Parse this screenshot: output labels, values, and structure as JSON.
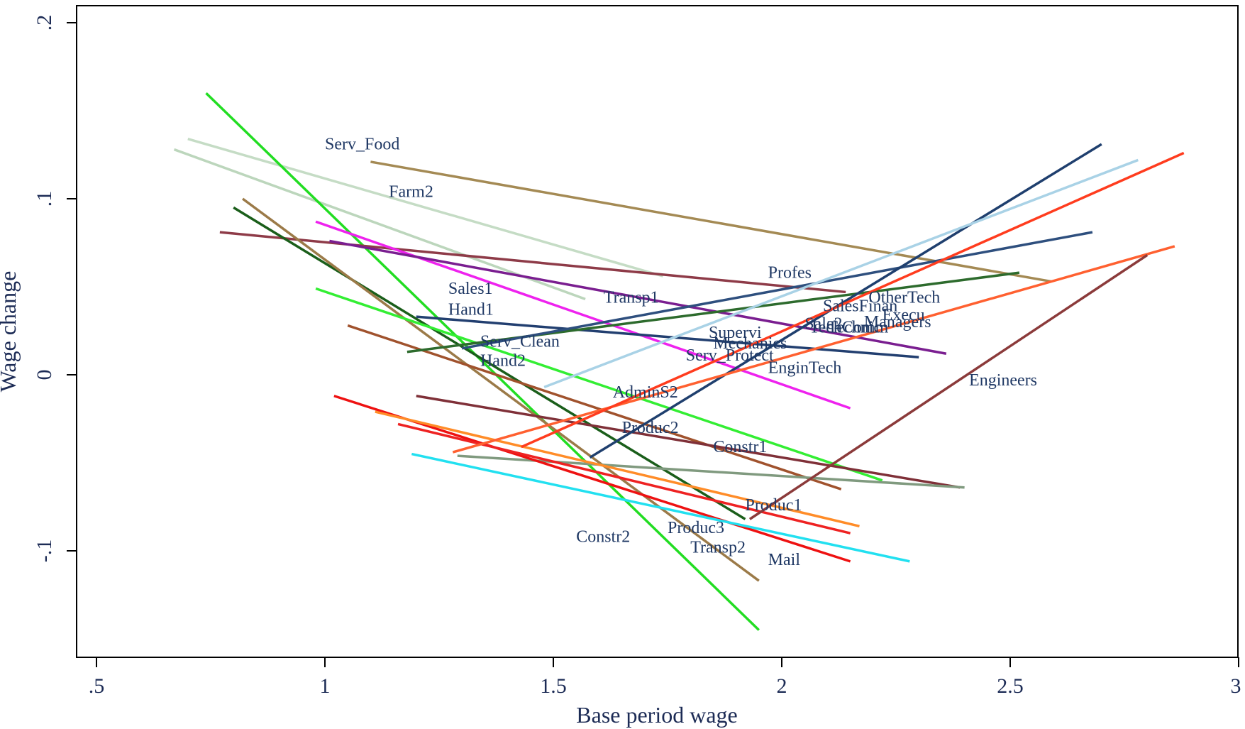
{
  "chart_data": {
    "type": "line",
    "title": "",
    "xlabel": "Base period wage",
    "ylabel": "Wage change",
    "xlim": [
      0.45,
      3.0
    ],
    "ylim": [
      -0.16,
      0.21
    ],
    "x_ticks": [
      {
        "value": 0.5,
        "label": ".5"
      },
      {
        "value": 1,
        "label": "1"
      },
      {
        "value": 1.5,
        "label": "1.5"
      },
      {
        "value": 2,
        "label": "2"
      },
      {
        "value": 2.5,
        "label": "2.5"
      },
      {
        "value": 3,
        "label": "3"
      }
    ],
    "y_ticks": [
      {
        "value": -0.1,
        "label": "-.1"
      },
      {
        "value": 0,
        "label": "0"
      },
      {
        "value": 0.1,
        "label": ".1"
      },
      {
        "value": 0.2,
        "label": ".2"
      }
    ],
    "grid": false,
    "legend": "none",
    "series": [
      {
        "x": [
          1.1,
          2.59
        ],
        "y": [
          0.121,
          0.053
        ],
        "color": "#a48a54"
      },
      {
        "x": [
          0.7,
          1.74
        ],
        "y": [
          0.134,
          0.056
        ],
        "color": "#c5dcc5"
      },
      {
        "x": [
          0.67,
          1.57
        ],
        "y": [
          0.128,
          0.043
        ],
        "color": "#bcd6bc"
      },
      {
        "x": [
          0.74,
          1.95
        ],
        "y": [
          0.16,
          -0.145
        ],
        "color": "#22dd22"
      },
      {
        "x": [
          0.77,
          2.14
        ],
        "y": [
          0.081,
          0.047
        ],
        "color": "#8e3b48"
      },
      {
        "x": [
          0.98,
          2.15
        ],
        "y": [
          0.087,
          -0.019
        ],
        "color": "#ee22ee"
      },
      {
        "x": [
          1.01,
          2.36
        ],
        "y": [
          0.076,
          0.012
        ],
        "color": "#7a1e90"
      },
      {
        "x": [
          0.8,
          1.92
        ],
        "y": [
          0.095,
          -0.082
        ],
        "color": "#1a5e1a"
      },
      {
        "x": [
          0.82,
          1.95
        ],
        "y": [
          0.1,
          -0.117
        ],
        "color": "#9b7a48"
      },
      {
        "x": [
          0.98,
          2.22
        ],
        "y": [
          0.049,
          -0.06
        ],
        "color": "#33ee33"
      },
      {
        "x": [
          1.05,
          2.13
        ],
        "y": [
          0.028,
          -0.065
        ],
        "color": "#a0522d"
      },
      {
        "x": [
          1.2,
          2.39
        ],
        "y": [
          -0.012,
          -0.064
        ],
        "color": "#7f3038"
      },
      {
        "x": [
          1.29,
          2.4
        ],
        "y": [
          -0.046,
          -0.064
        ],
        "color": "#809a7f"
      },
      {
        "x": [
          1.02,
          2.15
        ],
        "y": [
          -0.012,
          -0.106
        ],
        "color": "#ee1111"
      },
      {
        "x": [
          1.11,
          2.17
        ],
        "y": [
          -0.021,
          -0.086
        ],
        "color": "#ff8c28"
      },
      {
        "x": [
          1.16,
          2.15
        ],
        "y": [
          -0.028,
          -0.09
        ],
        "color": "#ee2222"
      },
      {
        "x": [
          1.19,
          2.28
        ],
        "y": [
          -0.045,
          -0.106
        ],
        "color": "#22e0f0"
      },
      {
        "x": [
          1.2,
          2.3
        ],
        "y": [
          0.033,
          0.01
        ],
        "color": "#223f70"
      },
      {
        "x": [
          1.18,
          2.52
        ],
        "y": [
          0.013,
          0.058
        ],
        "color": "#2d6b2d"
      },
      {
        "x": [
          1.3,
          2.68
        ],
        "y": [
          0.015,
          0.081
        ],
        "color": "#2e4f7e"
      },
      {
        "x": [
          1.58,
          2.7
        ],
        "y": [
          -0.047,
          0.131
        ],
        "color": "#1f3f6e"
      },
      {
        "x": [
          1.28,
          2.86
        ],
        "y": [
          -0.044,
          0.073
        ],
        "color": "#ff6030"
      },
      {
        "x": [
          1.43,
          2.88
        ],
        "y": [
          -0.041,
          0.126
        ],
        "color": "#ff3c1e"
      },
      {
        "x": [
          1.48,
          2.78
        ],
        "y": [
          -0.007,
          0.122
        ],
        "color": "#a9d2e6"
      },
      {
        "x": [
          1.93,
          2.8
        ],
        "y": [
          -0.082,
          0.068
        ],
        "color": "#8b3a3a"
      }
    ],
    "labels": [
      {
        "text": "Serv_Food",
        "x": 1.0,
        "y": 0.128
      },
      {
        "text": "Farm2",
        "x": 1.14,
        "y": 0.101
      },
      {
        "text": "Profes",
        "x": 1.97,
        "y": 0.055
      },
      {
        "text": "Sales1",
        "x": 1.27,
        "y": 0.046
      },
      {
        "text": "Transp1",
        "x": 1.61,
        "y": 0.041
      },
      {
        "text": "OtherTech",
        "x": 2.19,
        "y": 0.041
      },
      {
        "text": "Hand1",
        "x": 1.27,
        "y": 0.034
      },
      {
        "text": "SalesFinan",
        "x": 2.09,
        "y": 0.036
      },
      {
        "text": "Execu",
        "x": 2.22,
        "y": 0.031
      },
      {
        "text": "Managers",
        "x": 2.18,
        "y": 0.027
      },
      {
        "text": "Sale2",
        "x": 2.05,
        "y": 0.026
      },
      {
        "text": "TechComm",
        "x": 2.06,
        "y": 0.024
      },
      {
        "text": "Technic",
        "x": 2.1,
        "y": 0.024
      },
      {
        "text": "Supervi",
        "x": 1.84,
        "y": 0.021
      },
      {
        "text": "Serv_Clean",
        "x": 1.34,
        "y": 0.016
      },
      {
        "text": "Mechanics",
        "x": 1.85,
        "y": 0.015
      },
      {
        "text": "Serv_Protect",
        "x": 1.79,
        "y": 0.008
      },
      {
        "text": "Hand2",
        "x": 1.34,
        "y": 0.005
      },
      {
        "text": "EnginTech",
        "x": 1.97,
        "y": 0.001
      },
      {
        "text": "Engineers",
        "x": 2.41,
        "y": -0.006
      },
      {
        "text": "AdminS2",
        "x": 1.63,
        "y": -0.013
      },
      {
        "text": "Produc2",
        "x": 1.65,
        "y": -0.033
      },
      {
        "text": "Constr1",
        "x": 1.85,
        "y": -0.044
      },
      {
        "text": "Produc1",
        "x": 1.92,
        "y": -0.077
      },
      {
        "text": "Produc3",
        "x": 1.75,
        "y": -0.09
      },
      {
        "text": "Constr2",
        "x": 1.55,
        "y": -0.095
      },
      {
        "text": "Transp2",
        "x": 1.8,
        "y": -0.101
      },
      {
        "text": "Mail",
        "x": 1.97,
        "y": -0.108
      }
    ]
  }
}
